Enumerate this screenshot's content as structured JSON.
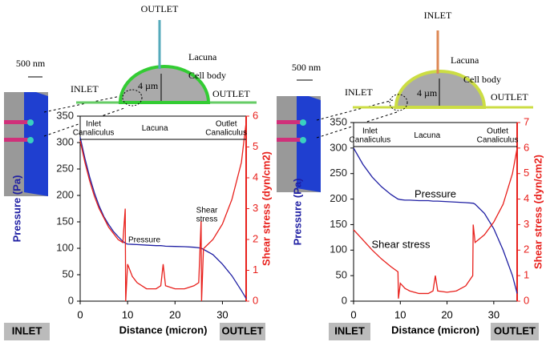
{
  "chart_data": [
    {
      "type": "line",
      "xlabel": "Distance (micron)",
      "ylabel": "Pressure (Pa)",
      "y2label": "Shear stress (dyn/cm2)",
      "x": [
        0,
        1,
        2,
        3,
        4,
        5,
        6,
        7,
        8,
        9,
        9.5,
        9.6,
        10,
        11,
        12,
        14,
        16,
        17,
        17.5,
        18,
        20,
        22,
        24,
        25,
        25.5,
        25.6,
        26,
        28,
        30,
        32,
        34,
        35
      ],
      "xlim": [
        0,
        35
      ],
      "xticks": [
        0,
        10,
        20,
        30
      ],
      "ylim": [
        0,
        350
      ],
      "yticks": [
        0,
        50,
        100,
        150,
        200,
        250,
        300,
        350
      ],
      "y2lim": [
        0,
        6
      ],
      "y2ticks": [
        0,
        1,
        2,
        3,
        4,
        5,
        6
      ],
      "series": [
        {
          "name": "Pressure",
          "color": "#1f1fa3",
          "values": [
            310,
            270,
            235,
            205,
            180,
            160,
            145,
            132,
            122,
            113,
            110,
            109,
            108,
            107.5,
            107,
            106,
            105,
            105,
            104.5,
            104,
            103.5,
            103,
            102,
            101,
            100,
            100,
            98,
            88,
            70,
            48,
            20,
            5
          ]
        },
        {
          "name": "Shear stress",
          "color": "#e8201c",
          "axis": "y2",
          "values": [
            5.2,
            4.5,
            3.9,
            3.4,
            3.0,
            2.7,
            2.4,
            2.2,
            2.0,
            1.9,
            3.0,
            0,
            1.2,
            0.8,
            0.6,
            0.4,
            0.4,
            0.5,
            1.2,
            0.5,
            0.4,
            0.4,
            0.5,
            0.6,
            2.6,
            0,
            1.7,
            2.0,
            2.5,
            3.3,
            4.5,
            5.8
          ]
        }
      ],
      "regions": [
        "Inlet Canaliculus",
        "Lacuna",
        "Outlet Canaliculus"
      ],
      "endpoints": [
        "INLET",
        "OUTLET"
      ]
    },
    {
      "type": "line",
      "xlabel": "Distance (micron)",
      "ylabel": "Pressure (Pa)",
      "y2label": "Shear stress (dyn/cm2)",
      "x": [
        0,
        2,
        4,
        6,
        8,
        9.5,
        9.6,
        10,
        11,
        12,
        14,
        16,
        17,
        17.5,
        18,
        20,
        22,
        24,
        25.5,
        25.6,
        26,
        28,
        30,
        32,
        34,
        35
      ],
      "xlim": [
        0,
        35
      ],
      "xticks": [
        0,
        10,
        20,
        30
      ],
      "ylim": [
        0,
        350
      ],
      "yticks": [
        0,
        50,
        100,
        150,
        200,
        250,
        300,
        350
      ],
      "y2lim": [
        0,
        7
      ],
      "y2ticks": [
        0,
        1,
        2,
        3,
        4,
        5,
        6,
        7
      ],
      "series": [
        {
          "name": "Pressure",
          "color": "#1f1fa3",
          "values": [
            300,
            268,
            243,
            224,
            209,
            200,
            200,
            199,
            198,
            198,
            197,
            197,
            196,
            196,
            196,
            195,
            194,
            193,
            192,
            192,
            190,
            172,
            142,
            100,
            50,
            15
          ]
        },
        {
          "name": "Shear stress",
          "color": "#e8201c",
          "axis": "y2",
          "values": [
            2.8,
            2.4,
            2.0,
            1.65,
            1.35,
            1.15,
            0.1,
            0.7,
            0.5,
            0.4,
            0.3,
            0.3,
            0.4,
            1.0,
            0.4,
            0.35,
            0.4,
            0.6,
            1.0,
            3.0,
            2.3,
            2.6,
            3.1,
            3.8,
            5.0,
            6.0
          ]
        }
      ],
      "regions": [
        "Inlet Canaliculus",
        "Lacuna",
        "Outlet Canaliculus"
      ],
      "endpoints": [
        "INLET",
        "OUTLET"
      ]
    }
  ],
  "diagrams": [
    {
      "top": "OUTLET",
      "lacuna": "Lacuna",
      "cell_body": "Cell body",
      "size": "4 µm",
      "left": "INLET",
      "right": "OUTLET",
      "scale": "500 nm"
    },
    {
      "top": "INLET",
      "lacuna": "Lacuna",
      "cell_body": "Cell body",
      "size": "4 µm",
      "left": "INLET",
      "right": "OUTLET",
      "scale": "500 nm"
    }
  ]
}
